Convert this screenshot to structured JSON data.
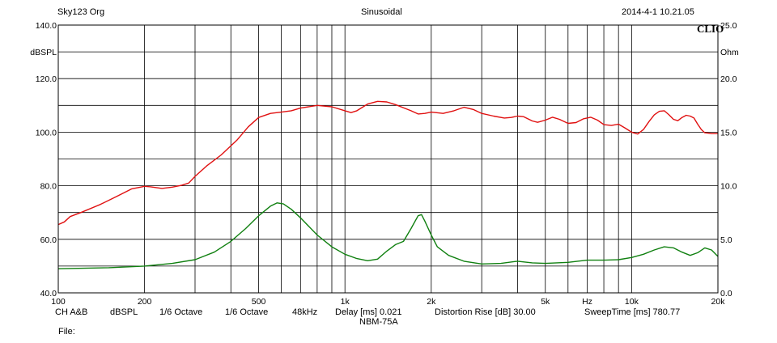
{
  "header": {
    "left": "Sky123 Org",
    "center": "Sinusoidal",
    "right": "2014-4-1 10.21.05",
    "brand": "CLIO"
  },
  "footer": {
    "ch": "CH A&B",
    "units": "dBSPL",
    "smoothing": "1/6 Octave",
    "smoothing2": "1/6 Octave",
    "rate": "48kHz",
    "delay": "Delay [ms] 0.021",
    "distortion": "Distortion Rise [dB] 30.00",
    "sweep": "SweepTime [ms] 780.77",
    "model": "NBM-75A",
    "file": "File:"
  },
  "colors": {
    "spl": "#e01010",
    "impedance": "#108010",
    "grid": "#000000"
  },
  "chart_data": {
    "type": "line",
    "title": "Sinusoidal",
    "x_scale": "log",
    "xlim": [
      100,
      20000
    ],
    "x_ticks": [
      {
        "v": 100,
        "label": "100"
      },
      {
        "v": 200,
        "label": "200"
      },
      {
        "v": 500,
        "label": "500"
      },
      {
        "v": 1000,
        "label": "1k"
      },
      {
        "v": 2000,
        "label": "2k"
      },
      {
        "v": 5000,
        "label": "5k"
      },
      {
        "v": 10000,
        "label": "10k"
      },
      {
        "v": 20000,
        "label": "20k"
      }
    ],
    "x_unit_label": "Hz",
    "x_unit_pos": 7000,
    "x_grid": [
      100,
      200,
      300,
      400,
      500,
      600,
      700,
      800,
      900,
      1000,
      2000,
      3000,
      4000,
      5000,
      6000,
      7000,
      8000,
      9000,
      10000,
      20000
    ],
    "y_left": {
      "label": "dBSPL",
      "lim": [
        40,
        140
      ],
      "ticks": [
        "40.0",
        "60.0",
        "80.0",
        "100.0",
        "120.0",
        "140.0"
      ]
    },
    "y_right": {
      "label": "Ohm",
      "lim": [
        0,
        25
      ],
      "ticks": [
        "0.0",
        "5.0",
        "10.0",
        "15.0",
        "20.0",
        "25.0"
      ]
    },
    "y_grid_step": 10,
    "grid": true,
    "series": [
      {
        "axis": "left",
        "color": "#e01010",
        "points": [
          [
            100,
            65.5
          ],
          [
            105,
            66.5
          ],
          [
            110,
            68.5
          ],
          [
            120,
            70
          ],
          [
            140,
            73
          ],
          [
            160,
            76
          ],
          [
            180,
            78.8
          ],
          [
            200,
            79.8
          ],
          [
            210,
            79.6
          ],
          [
            230,
            79
          ],
          [
            250,
            79.5
          ],
          [
            270,
            80.2
          ],
          [
            285,
            81
          ],
          [
            300,
            83.5
          ],
          [
            330,
            87.5
          ],
          [
            370,
            91.5
          ],
          [
            420,
            97
          ],
          [
            460,
            102
          ],
          [
            500,
            105.5
          ],
          [
            550,
            107
          ],
          [
            600,
            107.5
          ],
          [
            650,
            108
          ],
          [
            700,
            109
          ],
          [
            800,
            110
          ],
          [
            900,
            109.5
          ],
          [
            1000,
            108
          ],
          [
            1050,
            107.3
          ],
          [
            1100,
            108
          ],
          [
            1200,
            110.5
          ],
          [
            1300,
            111.5
          ],
          [
            1400,
            111.3
          ],
          [
            1500,
            110.3
          ],
          [
            1700,
            108
          ],
          [
            1800,
            106.8
          ],
          [
            1900,
            107
          ],
          [
            2000,
            107.5
          ],
          [
            2200,
            107
          ],
          [
            2400,
            108
          ],
          [
            2600,
            109.3
          ],
          [
            2800,
            108.5
          ],
          [
            3000,
            107
          ],
          [
            3300,
            106
          ],
          [
            3600,
            105.3
          ],
          [
            3800,
            105.5
          ],
          [
            4000,
            106
          ],
          [
            4200,
            105.8
          ],
          [
            4500,
            104.2
          ],
          [
            4700,
            103.7
          ],
          [
            5000,
            104.5
          ],
          [
            5300,
            105.6
          ],
          [
            5600,
            104.8
          ],
          [
            6000,
            103.3
          ],
          [
            6400,
            103.6
          ],
          [
            6800,
            105
          ],
          [
            7200,
            105.6
          ],
          [
            7600,
            104.5
          ],
          [
            8000,
            102.8
          ],
          [
            8500,
            102.5
          ],
          [
            9000,
            103
          ],
          [
            9500,
            101.5
          ],
          [
            10000,
            100
          ],
          [
            10500,
            99.3
          ],
          [
            11000,
            101
          ],
          [
            11500,
            104
          ],
          [
            12000,
            106.5
          ],
          [
            12500,
            107.8
          ],
          [
            13000,
            108
          ],
          [
            13500,
            106.5
          ],
          [
            14000,
            104.8
          ],
          [
            14500,
            104.3
          ],
          [
            15000,
            105.5
          ],
          [
            15500,
            106.3
          ],
          [
            16000,
            106
          ],
          [
            16500,
            105.3
          ],
          [
            17000,
            103
          ],
          [
            17500,
            101
          ],
          [
            18000,
            99.8
          ],
          [
            19000,
            99.5
          ],
          [
            20000,
            99.5
          ]
        ]
      },
      {
        "axis": "right",
        "color": "#108010",
        "points": [
          [
            100,
            2.25
          ],
          [
            150,
            2.35
          ],
          [
            200,
            2.5
          ],
          [
            250,
            2.75
          ],
          [
            300,
            3.1
          ],
          [
            350,
            3.8
          ],
          [
            400,
            4.8
          ],
          [
            450,
            6
          ],
          [
            500,
            7.2
          ],
          [
            550,
            8.1
          ],
          [
            580,
            8.4
          ],
          [
            610,
            8.3
          ],
          [
            650,
            7.8
          ],
          [
            700,
            7
          ],
          [
            800,
            5.4
          ],
          [
            900,
            4.3
          ],
          [
            1000,
            3.6
          ],
          [
            1100,
            3.2
          ],
          [
            1200,
            3
          ],
          [
            1300,
            3.15
          ],
          [
            1400,
            3.9
          ],
          [
            1500,
            4.5
          ],
          [
            1600,
            4.8
          ],
          [
            1700,
            6
          ],
          [
            1800,
            7.2
          ],
          [
            1850,
            7.3
          ],
          [
            1900,
            6.7
          ],
          [
            2000,
            5.4
          ],
          [
            2100,
            4.3
          ],
          [
            2300,
            3.5
          ],
          [
            2600,
            2.95
          ],
          [
            3000,
            2.7
          ],
          [
            3500,
            2.75
          ],
          [
            4000,
            2.95
          ],
          [
            4500,
            2.8
          ],
          [
            5000,
            2.75
          ],
          [
            6000,
            2.85
          ],
          [
            7000,
            3.05
          ],
          [
            8000,
            3.05
          ],
          [
            9000,
            3.1
          ],
          [
            10000,
            3.3
          ],
          [
            11000,
            3.6
          ],
          [
            12000,
            4
          ],
          [
            13000,
            4.3
          ],
          [
            14000,
            4.2
          ],
          [
            15000,
            3.8
          ],
          [
            16000,
            3.5
          ],
          [
            17000,
            3.75
          ],
          [
            18000,
            4.2
          ],
          [
            19000,
            4
          ],
          [
            20000,
            3.4
          ]
        ]
      }
    ]
  }
}
